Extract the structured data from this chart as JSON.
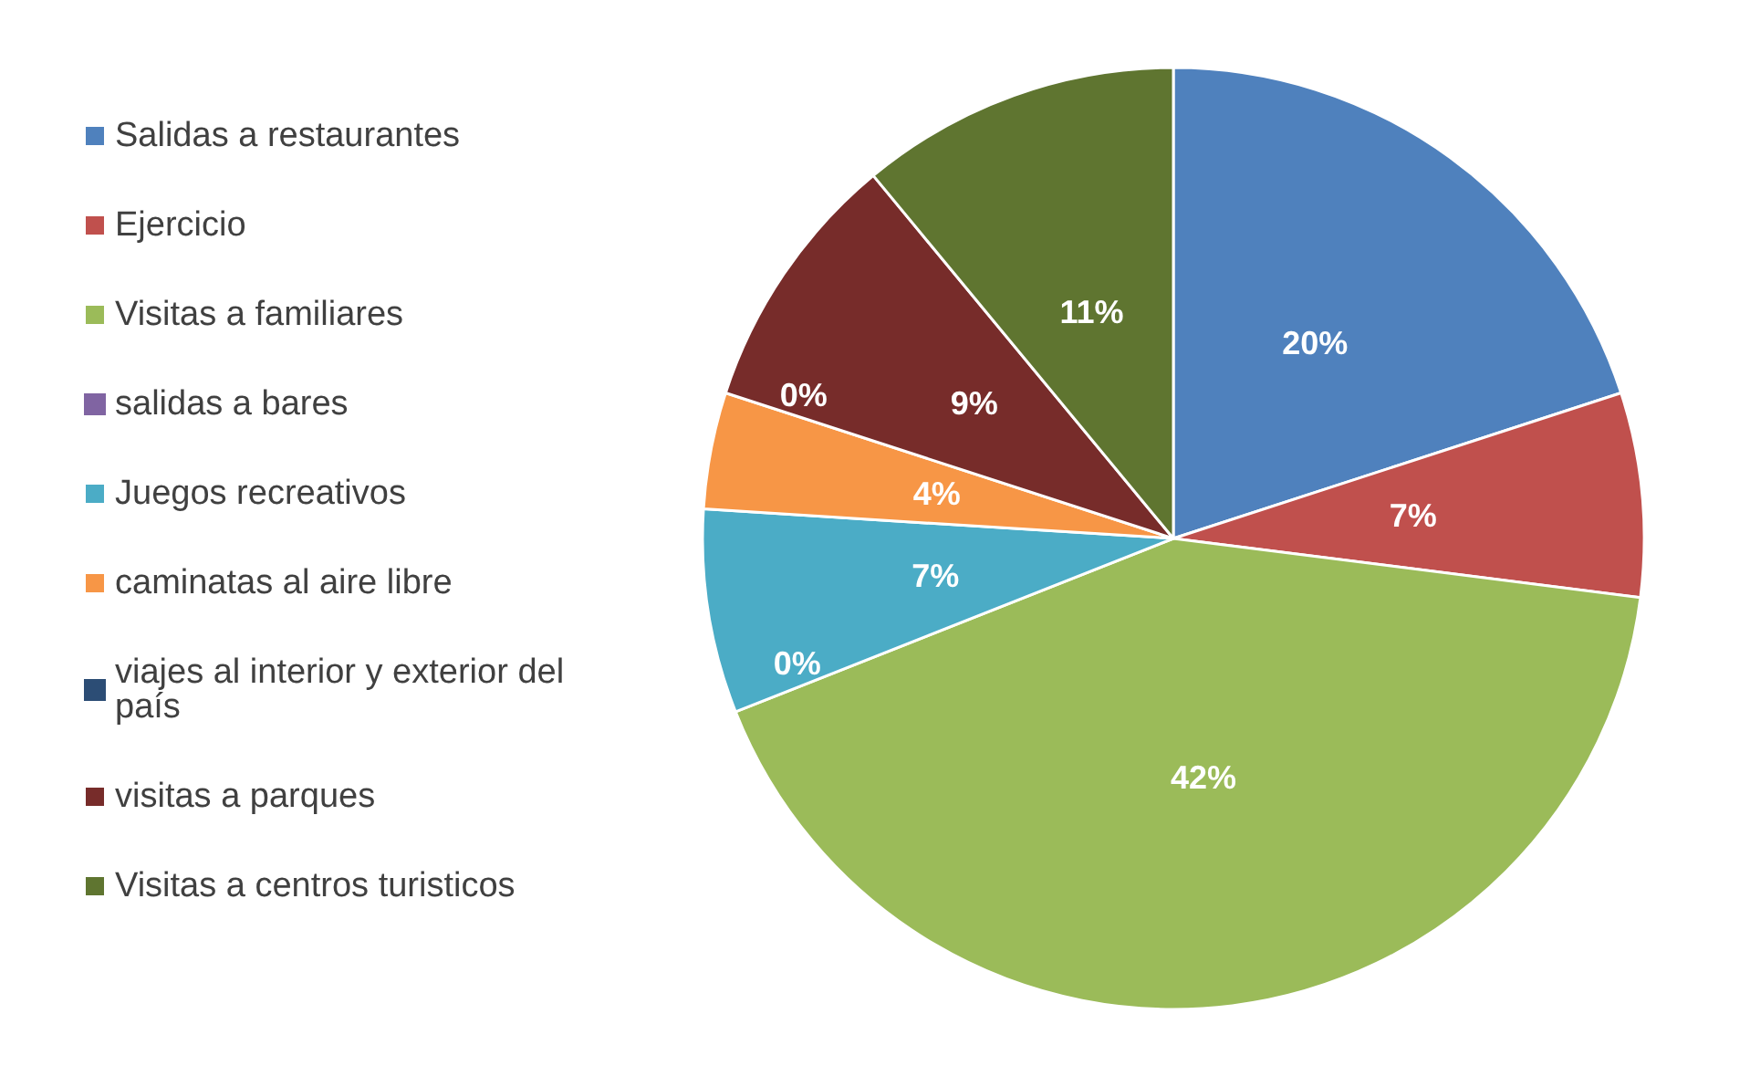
{
  "chart_data": {
    "type": "pie",
    "categories": [
      "Salidas a restaurantes",
      "Ejercicio",
      "Visitas a familiares",
      "salidas a bares",
      "Juegos recreativos",
      "caminatas al aire libre",
      "viajes al interior y exterior del país",
      "visitas a parques",
      "Visitas a centros turisticos"
    ],
    "values": [
      20,
      7,
      42,
      0,
      7,
      4,
      0,
      9,
      11
    ],
    "value_labels": [
      "20%",
      "7%",
      "42%",
      "0%",
      "7%",
      "4%",
      "0%",
      "9%",
      "11%"
    ],
    "colors": [
      "#4f81bd",
      "#c0504d",
      "#9bbb59",
      "#8064a2",
      "#4bacc6",
      "#f79646",
      "#2c4d75",
      "#772c2a",
      "#5f7530"
    ],
    "legend": "left"
  }
}
